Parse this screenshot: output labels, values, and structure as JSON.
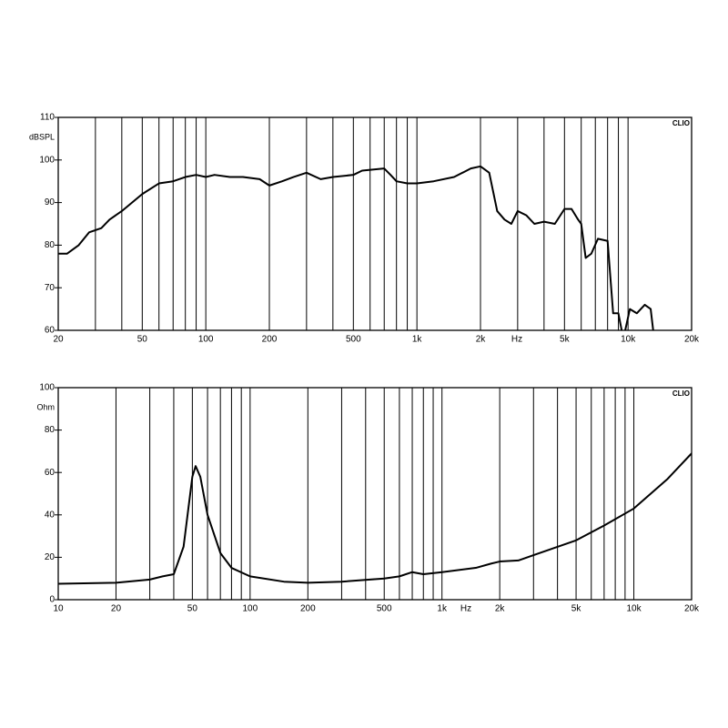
{
  "chart_data": [
    {
      "type": "line",
      "ylabel": "dBSPL",
      "xlabel": "Hz",
      "watermark": "CLIO",
      "xscale": "log",
      "xlim": [
        20,
        20000
      ],
      "ylim": [
        60,
        110
      ],
      "xticks": [
        20,
        50,
        100,
        200,
        500,
        {
          "value": 1000,
          "label": "1k"
        },
        {
          "value": 2000,
          "label": "2k"
        },
        {
          "value": 5000,
          "label": "5k"
        },
        {
          "value": 10000,
          "label": "10k"
        },
        {
          "value": 20000,
          "label": "20k"
        }
      ],
      "xminor": [
        30,
        40,
        50,
        60,
        70,
        80,
        90,
        100,
        200,
        300,
        400,
        500,
        600,
        700,
        800,
        900,
        1000,
        2000,
        3000,
        4000,
        5000,
        6000,
        7000,
        8000,
        9000,
        10000
      ],
      "yticks": [
        60,
        70,
        80,
        90,
        100,
        110
      ],
      "color": "#000000",
      "x": [
        20,
        22,
        25,
        28,
        32,
        35,
        40,
        50,
        60,
        70,
        80,
        90,
        100,
        110,
        130,
        150,
        180,
        200,
        230,
        260,
        300,
        350,
        400,
        500,
        550,
        700,
        750,
        800,
        900,
        1000,
        1200,
        1500,
        1800,
        2000,
        2200,
        2400,
        2600,
        2800,
        3000,
        3300,
        3600,
        4000,
        4500,
        5000,
        5400,
        5800,
        6000,
        6300,
        6700,
        7200,
        8000,
        8500,
        9000,
        9500,
        10200,
        11000,
        12000,
        12800,
        13300
      ],
      "values": [
        78,
        78,
        80,
        83,
        84,
        86,
        88,
        92,
        94.5,
        95,
        96,
        96.5,
        96,
        96.5,
        96,
        96,
        95.5,
        94,
        95,
        96,
        97,
        95.5,
        96,
        96.5,
        97.5,
        98,
        96.5,
        95,
        94.5,
        94.5,
        95,
        96,
        98,
        98.5,
        97,
        88,
        86,
        85,
        88,
        87,
        85,
        85.5,
        85,
        88.5,
        88.5,
        86,
        85,
        77,
        78,
        81.5,
        81,
        64,
        64,
        58,
        65,
        64,
        66,
        65,
        58
      ]
    },
    {
      "type": "line",
      "ylabel": "Ohm",
      "xlabel": "Hz",
      "watermark": "CLIO",
      "xscale": "log",
      "xlim": [
        10,
        20000
      ],
      "ylim": [
        0,
        100
      ],
      "xticks": [
        10,
        20,
        50,
        100,
        200,
        500,
        {
          "value": 1000,
          "label": "1k"
        },
        {
          "value": 2000,
          "label": "2k"
        },
        {
          "value": 5000,
          "label": "5k"
        },
        {
          "value": 10000,
          "label": "10k"
        },
        {
          "value": 20000,
          "label": "20k"
        }
      ],
      "xminor": [
        20,
        30,
        40,
        50,
        60,
        70,
        80,
        90,
        100,
        200,
        300,
        400,
        500,
        600,
        700,
        800,
        900,
        1000,
        2000,
        3000,
        4000,
        5000,
        6000,
        7000,
        8000,
        9000,
        10000
      ],
      "yticks": [
        0,
        20,
        40,
        60,
        80,
        100
      ],
      "color": "#000000",
      "x": [
        10,
        20,
        30,
        35,
        40,
        45,
        50,
        52,
        55,
        60,
        70,
        80,
        100,
        150,
        200,
        300,
        500,
        600,
        700,
        800,
        1000,
        1500,
        1800,
        2000,
        2500,
        3000,
        5000,
        7000,
        10000,
        15000,
        20000
      ],
      "values": [
        7.5,
        8,
        9.5,
        11,
        12,
        25,
        58,
        63,
        58,
        40,
        22,
        15,
        11,
        8.5,
        8,
        8.5,
        10,
        11,
        13,
        12,
        13,
        15,
        17,
        18,
        18.5,
        21,
        28,
        35,
        43,
        57,
        69
      ]
    }
  ]
}
